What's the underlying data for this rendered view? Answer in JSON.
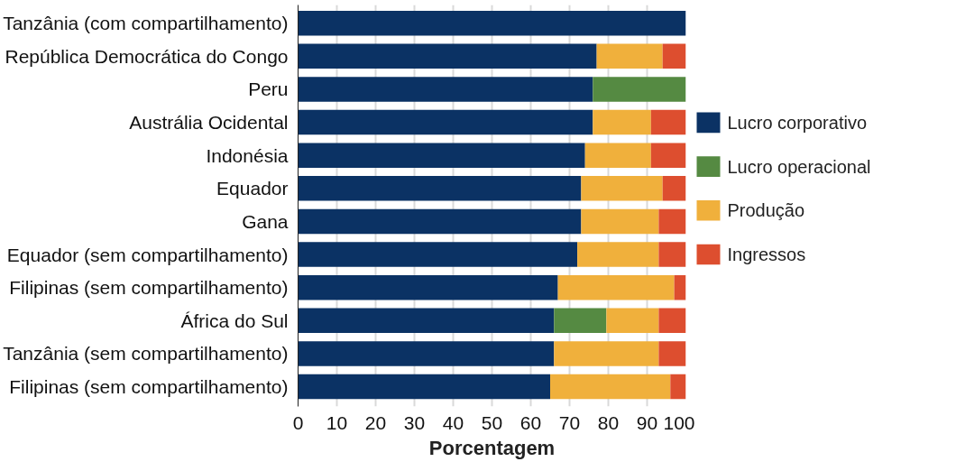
{
  "chart_data": {
    "type": "bar",
    "orientation": "horizontal",
    "stacked": true,
    "categories": [
      "Tanzânia (com compartilhamento)",
      "República Democrática do Congo",
      "Peru",
      "Austrália Ocidental",
      "Indonésia",
      "Equador",
      "Gana",
      "Equador (sem compartilhamento)",
      "Filipinas (sem compartilhamento)",
      "África do Sul",
      "Tanzânia (sem compartilhamento)",
      "Filipinas (sem compartilhamento)"
    ],
    "series": [
      {
        "name": "Lucro corporativo",
        "color": "#0b3264",
        "values": [
          100,
          77,
          76,
          76,
          74,
          73,
          73,
          72,
          67,
          66,
          66,
          65
        ]
      },
      {
        "name": "Lucro operacional",
        "color": "#558a42",
        "values": [
          null,
          null,
          24,
          null,
          null,
          null,
          null,
          null,
          null,
          13.5,
          null,
          null
        ]
      },
      {
        "name": "Produção",
        "color": "#f0b03c",
        "values": [
          null,
          17,
          null,
          15,
          17,
          21,
          20,
          21,
          30,
          13.5,
          27,
          31
        ]
      },
      {
        "name": "Ingressos",
        "color": "#dd4e2f",
        "values": [
          null,
          6,
          null,
          9,
          9,
          6,
          7,
          7,
          3,
          7,
          7,
          4
        ]
      }
    ],
    "xlim": [
      0,
      100
    ],
    "xticks": [
      0,
      10,
      20,
      30,
      40,
      50,
      60,
      70,
      80,
      90,
      100
    ],
    "xlabel": "Porcentagem",
    "grid": "x",
    "legend": "right"
  }
}
